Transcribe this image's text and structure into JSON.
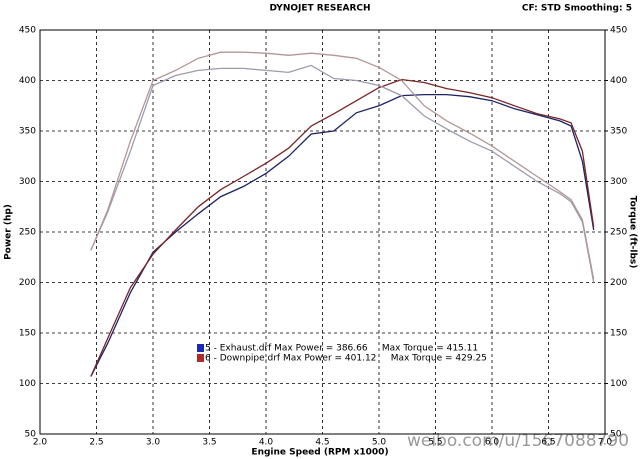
{
  "chart_data": {
    "type": "line",
    "title": "DYNOJET RESEARCH",
    "subtitle": "CF: STD  Smoothing: 5",
    "x_label": "Engine Speed (RPM x1000)",
    "y_label": "Power (hp)",
    "y2_label": "Torque (ft-lbs)",
    "watermark": "weibo.com/u/1567088790",
    "grid": true,
    "xlim": [
      2,
      7
    ],
    "xticks": [
      {
        "value": 2,
        "label": "2.0"
      },
      {
        "value": 2.5,
        "label": "2.5"
      },
      {
        "value": 3,
        "label": "3.0"
      },
      {
        "value": 3.5,
        "label": "3.5"
      },
      {
        "value": 4,
        "label": "4.0"
      },
      {
        "value": 4.5,
        "label": "4.5"
      },
      {
        "value": 5,
        "label": "5.0"
      },
      {
        "value": 5.5,
        "label": "5.5"
      },
      {
        "value": 6,
        "label": "6.0"
      },
      {
        "value": 6.5,
        "label": "6.5"
      },
      {
        "value": 7,
        "label": "7.0"
      }
    ],
    "ylim": [
      50,
      450
    ],
    "yticks": [
      50,
      100,
      150,
      200,
      250,
      300,
      350,
      400,
      450
    ],
    "y2lim": [
      50,
      450
    ],
    "y2ticks": [
      50,
      100,
      150,
      200,
      250,
      300,
      350,
      400,
      450
    ],
    "x": [
      2.45,
      2.6,
      2.8,
      3.0,
      3.2,
      3.4,
      3.6,
      3.8,
      4.0,
      4.2,
      4.4,
      4.6,
      4.8,
      5.0,
      5.2,
      5.4,
      5.6,
      5.8,
      6.0,
      6.2,
      6.4,
      6.6,
      6.7,
      6.8,
      6.9
    ],
    "series": [
      {
        "color": "#1c2466",
        "values": [
          107,
          140,
          190,
          230,
          250,
          268,
          285,
          295,
          308,
          325,
          347,
          350,
          368,
          375,
          385,
          386,
          386,
          384,
          380,
          372,
          366,
          360,
          355,
          320,
          252
        ]
      },
      {
        "color": "#7a2626",
        "values": [
          107,
          145,
          195,
          228,
          252,
          275,
          292,
          305,
          318,
          333,
          355,
          367,
          380,
          393,
          401,
          398,
          392,
          388,
          383,
          375,
          367,
          362,
          358,
          330,
          255
        ]
      },
      {
        "color": "#9c9cb0",
        "axis": "y2",
        "values": [
          232,
          270,
          330,
          395,
          405,
          410,
          412,
          412,
          410,
          408,
          415,
          402,
          400,
          395,
          385,
          365,
          352,
          340,
          330,
          315,
          300,
          288,
          280,
          260,
          200
        ]
      },
      {
        "color": "#b59696",
        "axis": "y2",
        "values": [
          232,
          272,
          340,
          400,
          410,
          422,
          428,
          428,
          427,
          425,
          427,
          425,
          422,
          413,
          400,
          375,
          360,
          348,
          335,
          320,
          305,
          290,
          282,
          262,
          203
        ]
      }
    ],
    "legend": [
      {
        "color": "#1c2bb0",
        "label": "5 - Exhaust.drf Max Power = 386.66     Max Torque = 415.11"
      },
      {
        "color": "#b02a2a",
        "label": "6 - Downpipe.drf Max Power = 401.12     Max Torque = 429.25"
      }
    ]
  }
}
